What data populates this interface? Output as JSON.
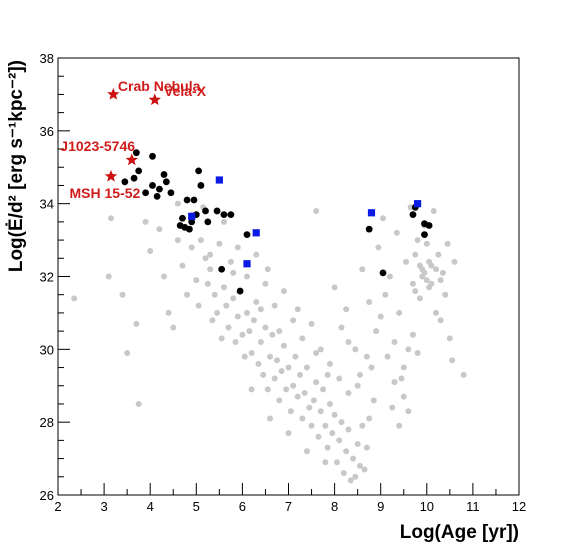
{
  "chart_data": {
    "type": "scatter",
    "title": "",
    "xlabel": "Log(Age [yr])",
    "ylabel": "Log(Ė/d² [erg s⁻¹kpc⁻²])",
    "xlim": [
      2,
      12
    ],
    "ylim": [
      26,
      38
    ],
    "x_ticks": [
      "2",
      "3",
      "4",
      "5",
      "6",
      "7",
      "8",
      "9",
      "10",
      "11",
      "12"
    ],
    "y_ticks": [
      "26",
      "28",
      "30",
      "32",
      "34",
      "36",
      "38"
    ],
    "grid": false,
    "legend": "none",
    "series": [
      {
        "marker": "circle",
        "color": "#c8c8c8",
        "points": [
          [
            2.35,
            31.4
          ],
          [
            3.1,
            32.0
          ],
          [
            3.15,
            33.6
          ],
          [
            3.4,
            31.5
          ],
          [
            3.5,
            29.9
          ],
          [
            3.75,
            28.5
          ],
          [
            3.7,
            30.7
          ],
          [
            3.9,
            33.5
          ],
          [
            4.0,
            32.7
          ],
          [
            4.2,
            33.3
          ],
          [
            4.3,
            32.0
          ],
          [
            4.4,
            31.0
          ],
          [
            4.5,
            30.6
          ],
          [
            4.6,
            33.0
          ],
          [
            4.7,
            32.3
          ],
          [
            4.8,
            31.5
          ],
          [
            4.9,
            32.8
          ],
          [
            5.0,
            31.9
          ],
          [
            5.05,
            31.2
          ],
          [
            5.1,
            33.0
          ],
          [
            5.2,
            32.5
          ],
          [
            5.25,
            31.8
          ],
          [
            5.3,
            32.2
          ],
          [
            5.35,
            30.8
          ],
          [
            5.4,
            31.5
          ],
          [
            5.45,
            31.0
          ],
          [
            5.5,
            32.9
          ],
          [
            5.55,
            30.3
          ],
          [
            5.6,
            31.7
          ],
          [
            5.65,
            31.2
          ],
          [
            5.7,
            30.6
          ],
          [
            5.75,
            32.4
          ],
          [
            5.8,
            31.4
          ],
          [
            5.85,
            30.2
          ],
          [
            5.9,
            30.9
          ],
          [
            5.95,
            31.6
          ],
          [
            6.0,
            30.4
          ],
          [
            6.05,
            29.8
          ],
          [
            6.1,
            31.0
          ],
          [
            6.15,
            30.5
          ],
          [
            6.2,
            29.9
          ],
          [
            6.25,
            30.8
          ],
          [
            6.3,
            31.3
          ],
          [
            6.35,
            29.6
          ],
          [
            6.4,
            30.2
          ],
          [
            6.45,
            29.3
          ],
          [
            6.5,
            30.6
          ],
          [
            6.55,
            28.9
          ],
          [
            6.6,
            29.8
          ],
          [
            6.65,
            30.4
          ],
          [
            6.7,
            29.2
          ],
          [
            6.75,
            29.7
          ],
          [
            6.8,
            28.6
          ],
          [
            6.85,
            29.4
          ],
          [
            6.9,
            30.1
          ],
          [
            6.95,
            28.9
          ],
          [
            7.0,
            29.5
          ],
          [
            7.05,
            28.3
          ],
          [
            7.1,
            29.0
          ],
          [
            7.15,
            29.8
          ],
          [
            7.2,
            28.7
          ],
          [
            7.25,
            29.3
          ],
          [
            7.3,
            28.1
          ],
          [
            7.35,
            28.8
          ],
          [
            7.4,
            29.5
          ],
          [
            7.45,
            28.4
          ],
          [
            7.5,
            27.9
          ],
          [
            7.55,
            28.6
          ],
          [
            7.6,
            29.1
          ],
          [
            7.65,
            27.6
          ],
          [
            7.7,
            28.3
          ],
          [
            7.75,
            28.9
          ],
          [
            7.8,
            27.9
          ],
          [
            7.85,
            27.3
          ],
          [
            7.9,
            28.5
          ],
          [
            7.95,
            27.7
          ],
          [
            8.0,
            28.2
          ],
          [
            8.05,
            26.9
          ],
          [
            8.1,
            27.5
          ],
          [
            8.15,
            28.0
          ],
          [
            8.2,
            26.6
          ],
          [
            8.25,
            27.2
          ],
          [
            8.3,
            27.8
          ],
          [
            8.35,
            26.4
          ],
          [
            8.4,
            27.0
          ],
          [
            8.45,
            26.5
          ],
          [
            8.5,
            27.4
          ],
          [
            8.55,
            26.8
          ],
          [
            8.6,
            27.9
          ],
          [
            8.65,
            26.7
          ],
          [
            8.7,
            27.3
          ],
          [
            8.75,
            28.1
          ],
          [
            5.9,
            32.8
          ],
          [
            6.1,
            32.0
          ],
          [
            6.3,
            32.6
          ],
          [
            6.5,
            31.8
          ],
          [
            6.7,
            31.2
          ],
          [
            6.9,
            31.6
          ],
          [
            7.1,
            30.8
          ],
          [
            7.3,
            30.3
          ],
          [
            7.5,
            30.7
          ],
          [
            7.7,
            30.0
          ],
          [
            7.9,
            29.6
          ],
          [
            8.1,
            29.2
          ],
          [
            8.3,
            28.8
          ],
          [
            8.5,
            29.0
          ],
          [
            6.2,
            28.9
          ],
          [
            6.6,
            28.1
          ],
          [
            7.0,
            27.7
          ],
          [
            7.4,
            27.2
          ],
          [
            7.8,
            26.9
          ],
          [
            7.6,
            33.8
          ],
          [
            8.0,
            31.7
          ],
          [
            8.25,
            31.1
          ],
          [
            8.3,
            30.2
          ],
          [
            8.45,
            30.0
          ],
          [
            8.55,
            29.3
          ],
          [
            8.6,
            32.2
          ],
          [
            8.7,
            29.8
          ],
          [
            8.75,
            31.3
          ],
          [
            8.8,
            29.5
          ],
          [
            8.85,
            28.6
          ],
          [
            8.9,
            30.5
          ],
          [
            8.95,
            32.8
          ],
          [
            9.0,
            30.9
          ],
          [
            9.05,
            33.6
          ],
          [
            9.1,
            31.5
          ],
          [
            9.15,
            29.8
          ],
          [
            9.2,
            32.0
          ],
          [
            9.25,
            28.4
          ],
          [
            9.3,
            30.2
          ],
          [
            9.35,
            33.2
          ],
          [
            9.4,
            31.0
          ],
          [
            9.45,
            29.2
          ],
          [
            9.5,
            28.7
          ],
          [
            9.55,
            32.4
          ],
          [
            9.6,
            30.0
          ],
          [
            9.65,
            33.9
          ],
          [
            9.7,
            31.8
          ],
          [
            9.75,
            32.6
          ],
          [
            9.8,
            33.0
          ],
          [
            9.85,
            31.4
          ],
          [
            9.9,
            32.2
          ],
          [
            9.95,
            33.4
          ],
          [
            10.0,
            32.9
          ],
          [
            10.05,
            31.7
          ],
          [
            10.1,
            32.3
          ],
          [
            10.15,
            33.8
          ],
          [
            10.2,
            31.0
          ],
          [
            10.25,
            32.6
          ],
          [
            10.3,
            30.8
          ],
          [
            10.35,
            32.1
          ],
          [
            10.4,
            31.5
          ],
          [
            10.45,
            32.9
          ],
          [
            10.5,
            30.3
          ],
          [
            10.55,
            29.7
          ],
          [
            10.6,
            32.4
          ],
          [
            10.8,
            29.3
          ],
          [
            9.9,
            32.0
          ],
          [
            10.0,
            31.9
          ],
          [
            10.05,
            32.4
          ],
          [
            9.95,
            32.1
          ],
          [
            10.1,
            31.8
          ],
          [
            9.85,
            32.3
          ],
          [
            10.2,
            32.2
          ],
          [
            9.75,
            31.6
          ],
          [
            10.3,
            31.9
          ],
          [
            9.3,
            29.1
          ],
          [
            9.4,
            27.9
          ],
          [
            9.5,
            29.5
          ],
          [
            9.6,
            28.3
          ],
          [
            9.7,
            30.4
          ],
          [
            9.8,
            29.9
          ],
          [
            4.6,
            34.0
          ],
          [
            4.9,
            33.7
          ],
          [
            5.15,
            33.9
          ],
          [
            5.3,
            32.6
          ],
          [
            5.6,
            33.5
          ],
          [
            5.8,
            32.1
          ],
          [
            6.4,
            31.1
          ],
          [
            6.55,
            32.2
          ],
          [
            6.8,
            30.5
          ],
          [
            7.2,
            31.1
          ],
          [
            7.6,
            29.9
          ],
          [
            7.85,
            29.3
          ],
          [
            8.15,
            30.6
          ]
        ]
      },
      {
        "marker": "circle",
        "color": "#000000",
        "points": [
          [
            3.7,
            35.4
          ],
          [
            4.05,
            35.3
          ],
          [
            3.75,
            34.9
          ],
          [
            3.65,
            34.7
          ],
          [
            4.3,
            34.8
          ],
          [
            4.35,
            34.6
          ],
          [
            4.2,
            34.4
          ],
          [
            4.05,
            34.5
          ],
          [
            3.9,
            34.3
          ],
          [
            4.15,
            34.2
          ],
          [
            4.45,
            34.3
          ],
          [
            3.45,
            34.6
          ],
          [
            5.05,
            34.9
          ],
          [
            5.1,
            34.5
          ],
          [
            4.8,
            34.1
          ],
          [
            4.95,
            34.1
          ],
          [
            5.0,
            33.7
          ],
          [
            5.2,
            33.8
          ],
          [
            4.7,
            33.6
          ],
          [
            4.9,
            33.5
          ],
          [
            4.65,
            33.4
          ],
          [
            5.25,
            33.5
          ],
          [
            4.85,
            33.3
          ],
          [
            4.75,
            33.35
          ],
          [
            5.45,
            33.8
          ],
          [
            5.6,
            33.7
          ],
          [
            5.75,
            33.7
          ],
          [
            6.1,
            33.15
          ],
          [
            5.55,
            32.2
          ],
          [
            5.95,
            31.6
          ],
          [
            8.75,
            33.3
          ],
          [
            9.05,
            32.1
          ],
          [
            9.7,
            33.7
          ],
          [
            9.75,
            33.9
          ],
          [
            9.95,
            33.45
          ],
          [
            10.05,
            33.4
          ],
          [
            9.95,
            33.15
          ]
        ]
      },
      {
        "marker": "square",
        "color": "#0b1be6",
        "points": [
          [
            5.5,
            34.65
          ],
          [
            4.9,
            33.65
          ],
          [
            6.3,
            33.2
          ],
          [
            6.1,
            32.35
          ],
          [
            8.8,
            33.75
          ],
          [
            9.8,
            34.0
          ]
        ]
      },
      {
        "marker": "star",
        "color": "#cc1111",
        "points": [
          [
            3.2,
            37.0
          ],
          [
            4.1,
            36.85
          ],
          [
            3.6,
            35.2
          ],
          [
            3.15,
            34.75
          ]
        ]
      }
    ],
    "annotations": [
      {
        "text": "Crab Nebula",
        "x": 3.3,
        "y": 37.1
      },
      {
        "text": "Vela-X",
        "x": 4.3,
        "y": 36.95
      },
      {
        "text": "J1023-5746",
        "x": 2.05,
        "y": 35.45
      },
      {
        "text": "MSH 15-52",
        "x": 2.25,
        "y": 34.15
      }
    ]
  }
}
